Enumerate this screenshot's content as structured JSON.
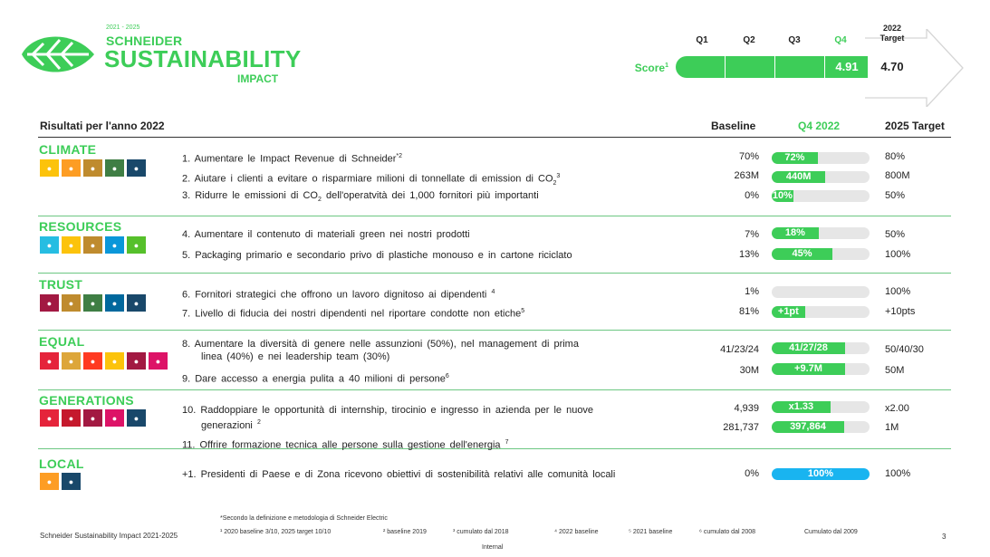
{
  "colors": {
    "accent": "#3dcd58",
    "bar_track": "#e6e6e6",
    "blue_bar": "#19b4f0"
  },
  "logo": {
    "years": "2021 - 2025",
    "line1": "SCHNEIDER",
    "line2": "SUSTAINABILITY",
    "line3": "IMPACT",
    "icon": "leaf-icon"
  },
  "score": {
    "label": "Score",
    "label_sup": "1",
    "quarters": [
      "Q1",
      "Q2",
      "Q3",
      "Q4"
    ],
    "highlight_quarter": "Q4",
    "target_label_1": "2022",
    "target_label_2": "Target",
    "value": "4.91",
    "target": "4.70"
  },
  "table": {
    "title": "Risultati per l'anno 2022",
    "col_baseline": "Baseline",
    "col_q4": "Q4 2022",
    "col_target": "2025 Target"
  },
  "categories": [
    {
      "name": "CLIMATE",
      "icons": [
        {
          "n": "sdg-7-icon",
          "c": "#fcc30b"
        },
        {
          "n": "sdg-11-icon",
          "c": "#fd9d24"
        },
        {
          "n": "sdg-12-icon",
          "c": "#bf8b2e"
        },
        {
          "n": "sdg-13-icon",
          "c": "#3f7e44"
        },
        {
          "n": "sdg-17-icon",
          "c": "#19486a"
        }
      ]
    },
    {
      "name": "RESOURCES",
      "icons": [
        {
          "n": "sdg-6-icon",
          "c": "#26bde2"
        },
        {
          "n": "sdg-7-icon",
          "c": "#fcc30b"
        },
        {
          "n": "sdg-12-icon",
          "c": "#bf8b2e"
        },
        {
          "n": "sdg-14-icon",
          "c": "#0a97d9"
        },
        {
          "n": "sdg-15-icon",
          "c": "#56c02b"
        }
      ]
    },
    {
      "name": "TRUST",
      "icons": [
        {
          "n": "sdg-8-icon",
          "c": "#a21942"
        },
        {
          "n": "sdg-12-icon",
          "c": "#bf8b2e"
        },
        {
          "n": "sdg-13-icon",
          "c": "#3f7e44"
        },
        {
          "n": "sdg-16-icon",
          "c": "#00689d"
        },
        {
          "n": "sdg-17-icon",
          "c": "#19486a"
        }
      ]
    },
    {
      "name": "EQUAL",
      "icons": [
        {
          "n": "sdg-1-icon",
          "c": "#e5243b"
        },
        {
          "n": "sdg-2-icon",
          "c": "#dda63a"
        },
        {
          "n": "sdg-5-icon",
          "c": "#ff3a21"
        },
        {
          "n": "sdg-7-icon",
          "c": "#fcc30b"
        },
        {
          "n": "sdg-8-icon",
          "c": "#a21942"
        },
        {
          "n": "sdg-10-icon",
          "c": "#dd1367"
        }
      ]
    },
    {
      "name": "GENERATIONS",
      "icons": [
        {
          "n": "sdg-1-icon",
          "c": "#e5243b"
        },
        {
          "n": "sdg-4-icon",
          "c": "#c5192d"
        },
        {
          "n": "sdg-8-icon",
          "c": "#a21942"
        },
        {
          "n": "sdg-10-icon",
          "c": "#dd1367"
        },
        {
          "n": "sdg-17-icon",
          "c": "#19486a"
        }
      ]
    },
    {
      "name": "LOCAL",
      "icons": [
        {
          "n": "sdg-11-icon",
          "c": "#fd9d24"
        },
        {
          "n": "sdg-17-icon",
          "c": "#19486a"
        }
      ]
    }
  ],
  "items": [
    {
      "text": "1.  Aumentare  le  Impact  Revenue  di  Schneider",
      "sup": "*2",
      "baseline": "70%",
      "value": "72%",
      "fill": 0.47,
      "target": "80%"
    },
    {
      "text": "2.  Aiutare i clienti a evitare o risparmiare milioni  di tonnellate di emission di CO",
      "sub": "2",
      "sup": "3",
      "baseline": "263M",
      "value": "440M",
      "fill": 0.55,
      "target": "800M"
    },
    {
      "text": "3.  Ridurre le emissioni  di CO",
      "sub": "2",
      "text_after": " dell'operatvità  dei 1,000  fornitori più importanti",
      "baseline": "0%",
      "value": "10%",
      "fill": 0.22,
      "target": "50%"
    },
    {
      "text": "4.  Aumentare  il contenuto di materiali  green  nei nostri prodotti",
      "baseline": "7%",
      "value": "18%",
      "fill": 0.48,
      "target": "50%"
    },
    {
      "text": "5.  Packaging  primario  e secondario privo di plastiche monouso  e in cartone riciclato",
      "baseline": "13%",
      "value": "45%",
      "fill": 0.62,
      "target": "100%"
    },
    {
      "text": "6.  Fornitori strategici che offrono un lavoro dignitoso ai dipendenti ",
      "sup": "4",
      "baseline": "1%",
      "value": "",
      "fill": 0.0,
      "target": "100%"
    },
    {
      "text": "7.  Livello di fiducia dei nostri dipendenti  nel riportare condotte non etiche",
      "sup": "5",
      "baseline": "81%",
      "value": "+1pt",
      "fill": 0.34,
      "target": "+10pts"
    },
    {
      "text": "8.  Aumentare  la diversità di genere nelle assunzioni (50%), nel management  di prima",
      "text2": "linea  (40%)  e nei leadership team  (30%)",
      "baseline": "41/23/24",
      "value": "41/27/28",
      "fill": 0.75,
      "target": "50/40/30"
    },
    {
      "text": "9.  Dare accesso a energia pulita  a 40 milioni  di persone",
      "sup": "6",
      "baseline": "30M",
      "value": "+9.7M",
      "fill": 0.75,
      "target": "50M"
    },
    {
      "text": "10. Raddoppiare  le opportunità di internship, tirocinio e ingresso in azienda per le nuove",
      "text2": "generazioni ",
      "sup2": "2",
      "baseline": "4,939",
      "value": "x1.33",
      "fill": 0.6,
      "target": "x2.00"
    },
    {
      "text": "11. Offrire formazione tecnica alle persone sulla gestione dell'energia ",
      "sup": "7",
      "baseline": "281,737",
      "value": "397,864",
      "fill": 0.74,
      "target": "1M"
    },
    {
      "text": "+1. Presidenti  di Paese  e di Zona ricevono  obiettivi di sostenibilità  relativi alle comunità  locali",
      "baseline": "0%",
      "value": "100%",
      "fill": 1.0,
      "target": "100%"
    }
  ],
  "footer": {
    "note": "*Secondo  la definizione e metodologia  di Schneider Electric",
    "fn1": "¹ 2020  baseline 3/10, 2025 target 10/10",
    "fn2": "² baseline  2019",
    "fn3": "³ cumulato  dal 2018",
    "fn4": "⁴ 2022  baseline",
    "fn5": "⁵ 2021  baseline",
    "fn6": "⁶ cumulato dal 2008",
    "fn7": "Cumulato dal 2009",
    "left": "Schneider  Sustainability  Impact  2021-2025",
    "internal": "Internal",
    "page": "3"
  }
}
